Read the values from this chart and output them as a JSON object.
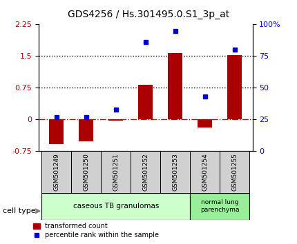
{
  "title": "GDS4256 / Hs.301495.0.S1_3p_at",
  "samples": [
    "GSM501249",
    "GSM501250",
    "GSM501251",
    "GSM501252",
    "GSM501253",
    "GSM501254",
    "GSM501255"
  ],
  "transformed_count": [
    -0.58,
    -0.52,
    -0.03,
    0.82,
    1.57,
    -0.18,
    1.52
  ],
  "percentile_rank": [
    27,
    27,
    33,
    86,
    95,
    43,
    80
  ],
  "bar_color": "#aa0000",
  "dot_color": "#0000cc",
  "ylim_left": [
    -0.75,
    2.25
  ],
  "ylim_right": [
    0,
    100
  ],
  "yticks_left": [
    -0.75,
    0,
    0.75,
    1.5,
    2.25
  ],
  "yticks_right": [
    0,
    25,
    50,
    75,
    100
  ],
  "yticklabels_right": [
    "0",
    "25",
    "50",
    "75",
    "100%"
  ],
  "hlines": [
    0.75,
    1.5
  ],
  "hline_zero_color": "#cc0000",
  "hline_color": "black",
  "groups": [
    {
      "label": "caseous TB granulomas",
      "samples": [
        0,
        1,
        2,
        3,
        4
      ],
      "color": "#ccffcc"
    },
    {
      "label": "normal lung\nparenchyma",
      "samples": [
        5,
        6
      ],
      "color": "#99ee99"
    }
  ],
  "cell_type_label": "cell type",
  "legend_bar_label": "transformed count",
  "legend_dot_label": "percentile rank within the sample",
  "background_color": "#ffffff",
  "plot_bg_color": "#ffffff",
  "spine_color": "#000000"
}
